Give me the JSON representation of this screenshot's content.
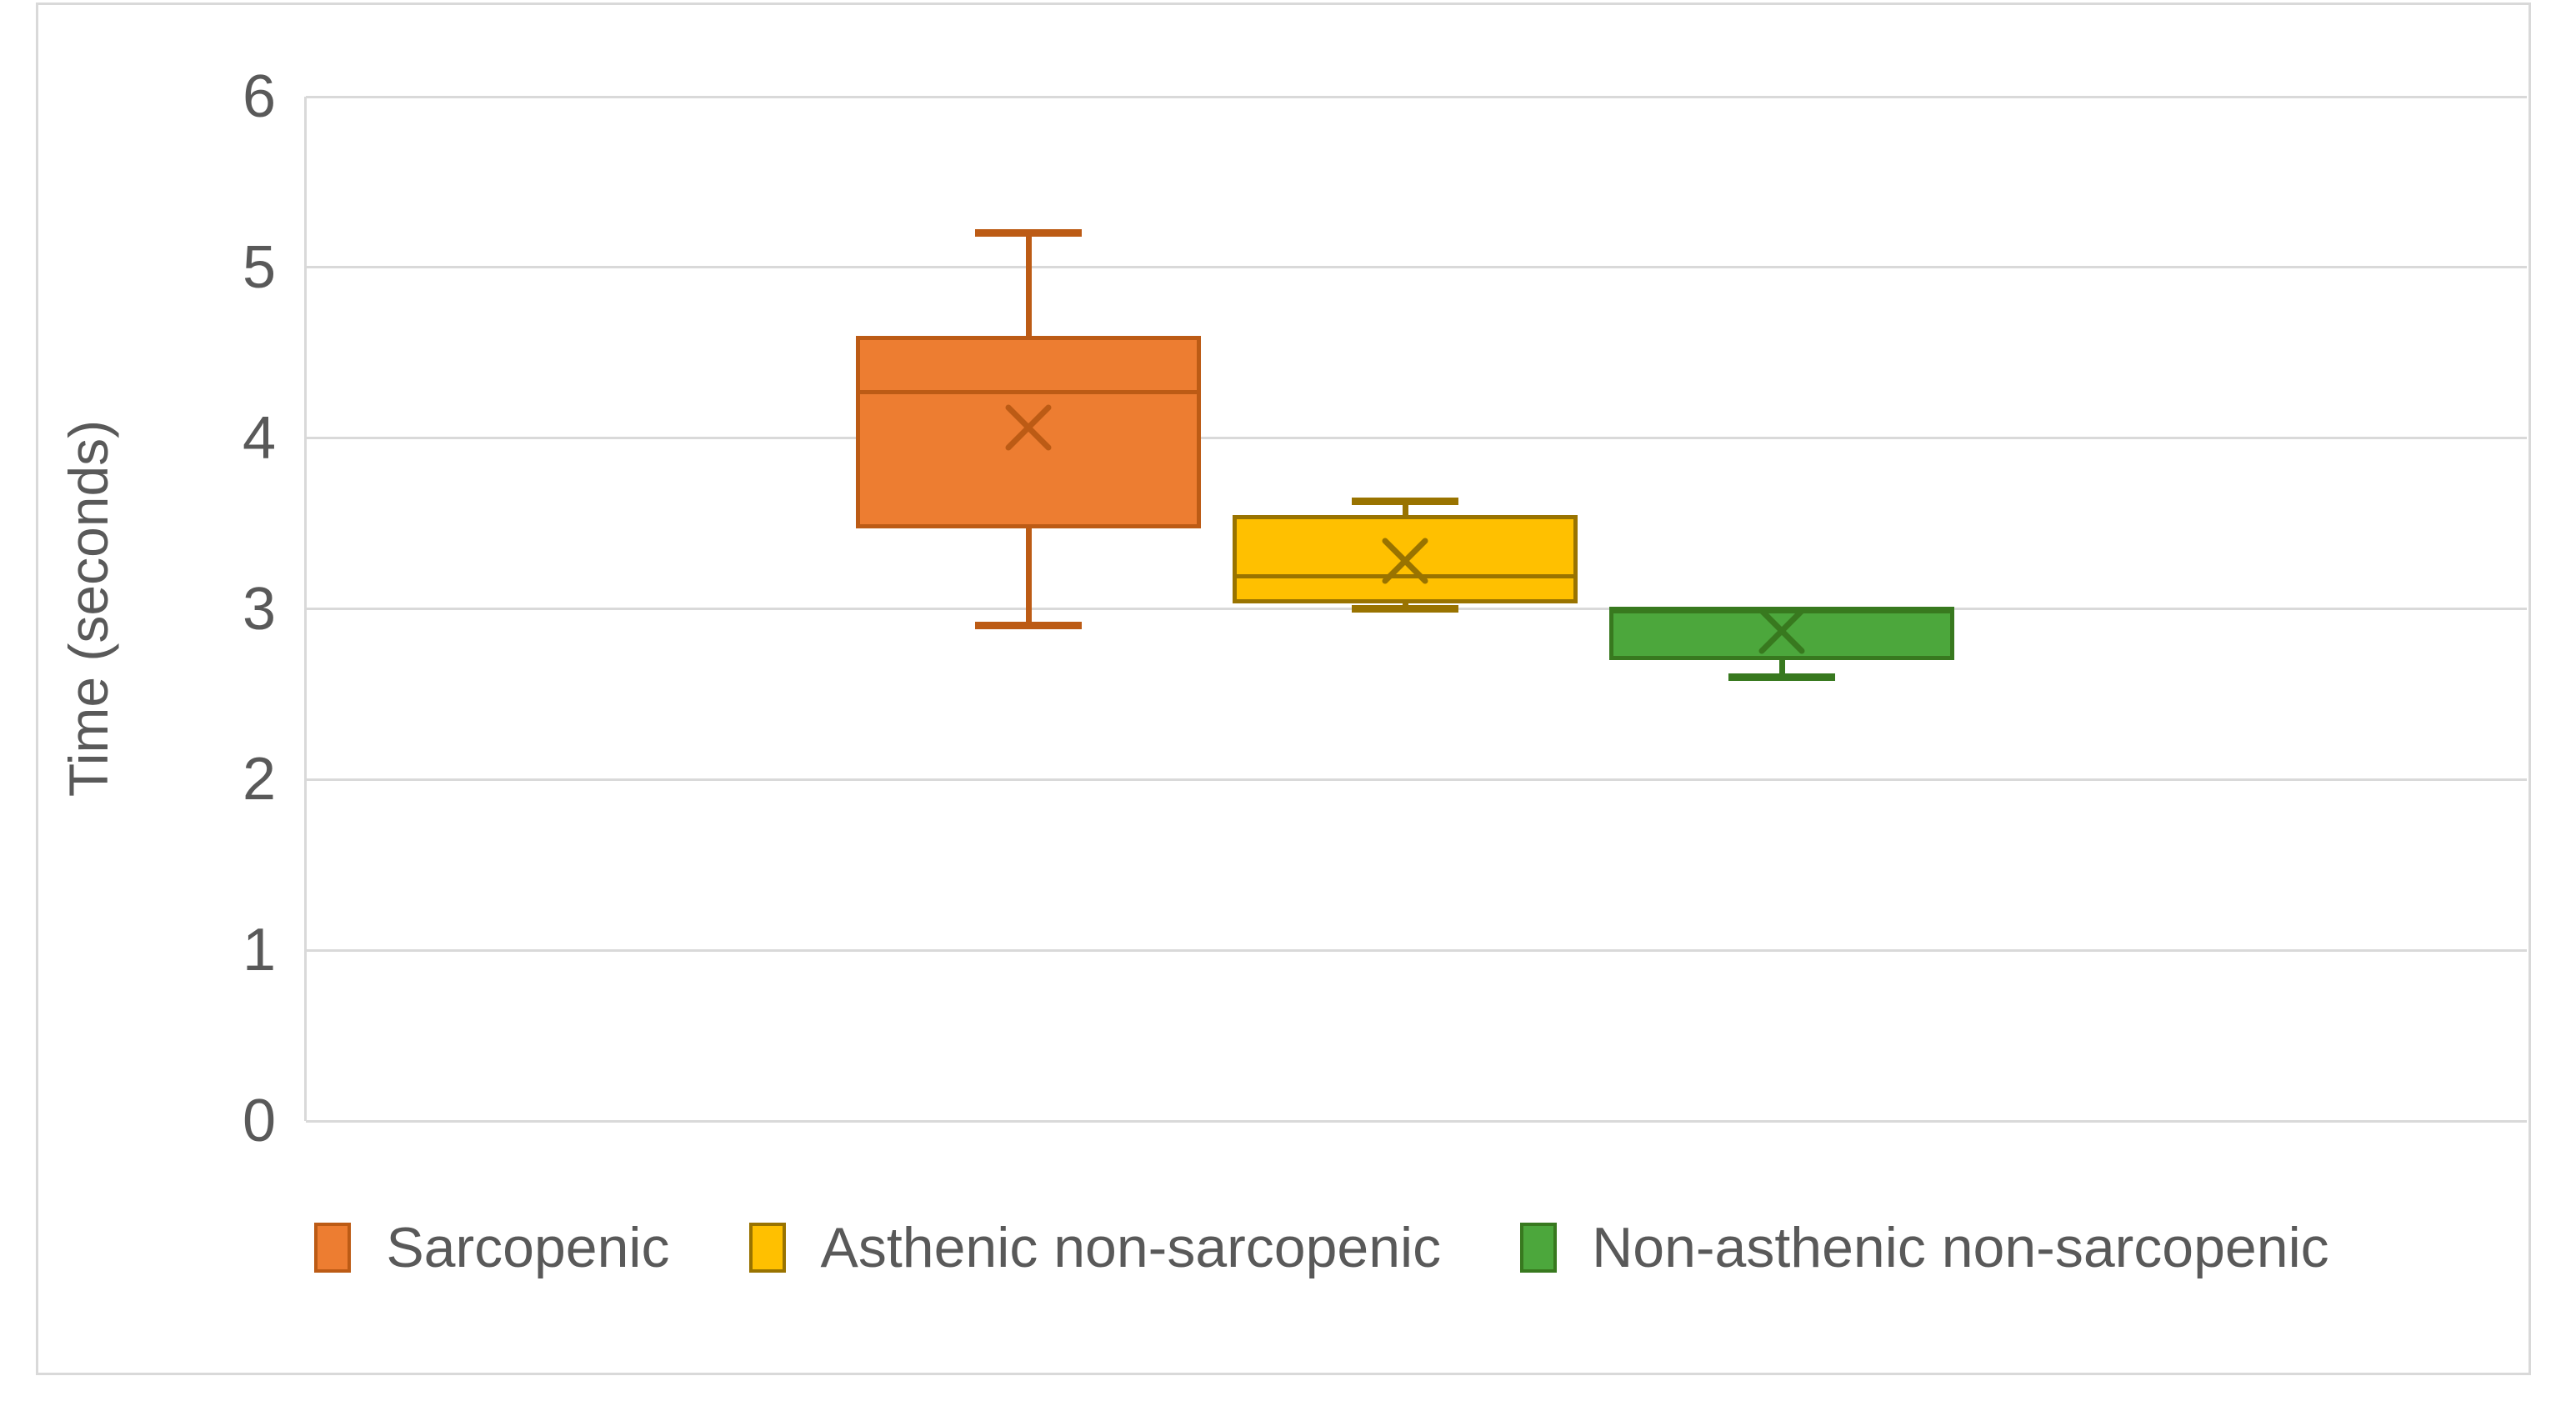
{
  "y_axis": {
    "title": "Time (seconds)",
    "tick_labels": [
      "0",
      "1",
      "2",
      "3",
      "4",
      "5",
      "6"
    ]
  },
  "colors": {
    "gridline": "#d9d9d9",
    "axis_line": "#d9d9d9",
    "frame_border": "#d9d9d9",
    "text": "#595959",
    "background": "#ffffff"
  },
  "legend": {
    "position": "bottom",
    "entries": [
      "Sarcopenic",
      "Asthenic non-sarcopenic",
      "Non-asthenic non-sarcopenic"
    ]
  },
  "chart_data": {
    "type": "box",
    "title": "",
    "xlabel": "",
    "ylabel": "Time (seconds)",
    "ylim": [
      0,
      6
    ],
    "yticks": [
      0,
      1,
      2,
      3,
      4,
      5,
      6
    ],
    "grid": true,
    "legend_position": "bottom",
    "series": [
      {
        "name": "Sarcopenic",
        "fill": "#ED7D31",
        "line": "#BC5B15",
        "whisker_low": 2.9,
        "q1": 3.47,
        "median": 4.27,
        "q3": 4.6,
        "whisker_high": 5.2,
        "mean": 4.06
      },
      {
        "name": "Asthenic non-sarcopenic",
        "fill": "#FFC000",
        "line": "#997300",
        "whisker_low": 3.0,
        "q1": 3.03,
        "median": 3.19,
        "q3": 3.55,
        "whisker_high": 3.63,
        "mean": 3.28
      },
      {
        "name": "Non-asthenic non-sarcopenic",
        "fill": "#4CA73C",
        "line": "#38791F",
        "whisker_low": 2.6,
        "q1": 2.7,
        "median": 3.0,
        "q3": 3.0,
        "whisker_high": 3.0,
        "mean": 2.87
      }
    ]
  }
}
